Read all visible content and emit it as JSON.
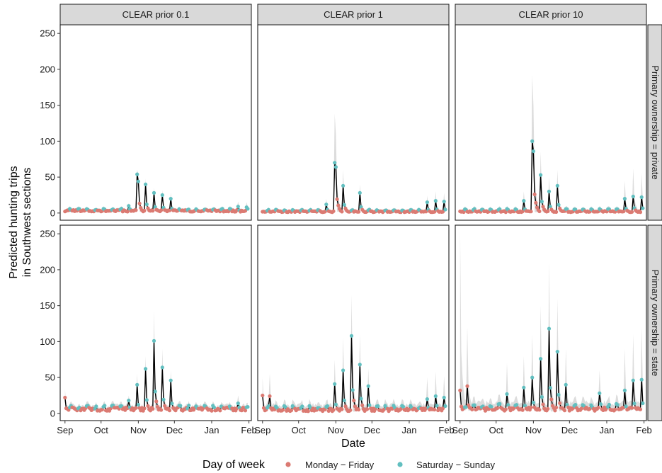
{
  "chart_data": {
    "type": "line",
    "xlabel": "Date",
    "ylabel_lines": [
      "Predicted hunting trips",
      "in Southwest sections"
    ],
    "yticks": [
      0,
      50,
      100,
      150,
      200,
      250
    ],
    "ylim": [
      -10,
      262
    ],
    "x_start_date": "2020-09-01",
    "xlim": [
      "2020-08-28",
      "2021-02-03"
    ],
    "xticks": [
      {
        "label": "Sep",
        "date": "2020-09-01"
      },
      {
        "label": "Oct",
        "date": "2020-10-01"
      },
      {
        "label": "Nov",
        "date": "2020-11-01"
      },
      {
        "label": "Dec",
        "date": "2020-12-01"
      },
      {
        "label": "Jan",
        "date": "2021-01-01"
      },
      {
        "label": "Feb",
        "date": "2021-02-01"
      }
    ],
    "col_strips": [
      "CLEAR prior 0.1",
      "CLEAR prior 1",
      "CLEAR prior 10"
    ],
    "row_strips": [
      "Primary ownership = private",
      "Primary ownership = state"
    ],
    "legend": {
      "title": "Day of week",
      "position": "bottom",
      "items": [
        {
          "label": "Monday − Friday",
          "color": "#db7a72"
        },
        {
          "label": "Saturday − Sunday",
          "color": "#62bfc0"
        }
      ]
    },
    "ribbon_color": "#bfbfbf",
    "line_color": "#000000",
    "series_note": "Daily predictions, Sep 1 2020 through Jan 31 2021; point color by weekday vs weekend",
    "panels": [
      {
        "row": 0,
        "col": 0,
        "base": 3,
        "weekend_bump": 2,
        "ci_ratio": 0.25,
        "ci_add": 2,
        "peaks": [
          {
            "date": "2020-10-31",
            "value": 54,
            "upper": 60
          },
          {
            "date": "2020-11-01",
            "value": 44,
            "upper": 55
          },
          {
            "date": "2020-11-07",
            "value": 40,
            "upper": 48
          },
          {
            "date": "2020-11-14",
            "value": 28,
            "upper": 35
          },
          {
            "date": "2020-11-21",
            "value": 25,
            "upper": 32
          },
          {
            "date": "2020-11-28",
            "value": 20,
            "upper": 28
          },
          {
            "date": "2020-10-24",
            "value": 10,
            "upper": 14
          },
          {
            "date": "2021-01-23",
            "value": 9,
            "upper": 16
          },
          {
            "date": "2021-01-30",
            "value": 8,
            "upper": 15
          }
        ]
      },
      {
        "row": 0,
        "col": 1,
        "base": 2,
        "weekend_bump": 2,
        "ci_ratio": 0.3,
        "ci_add": 2,
        "peaks": [
          {
            "date": "2020-10-31",
            "value": 70,
            "upper": 138
          },
          {
            "date": "2020-11-01",
            "value": 64,
            "upper": 110
          },
          {
            "date": "2020-11-07",
            "value": 38,
            "upper": 60
          },
          {
            "date": "2020-11-21",
            "value": 28,
            "upper": 40
          },
          {
            "date": "2020-10-24",
            "value": 12,
            "upper": 20
          },
          {
            "date": "2021-01-16",
            "value": 15,
            "upper": 24
          },
          {
            "date": "2021-01-23",
            "value": 17,
            "upper": 30
          },
          {
            "date": "2021-01-30",
            "value": 16,
            "upper": 28
          }
        ]
      },
      {
        "row": 0,
        "col": 2,
        "base": 2,
        "weekend_bump": 3,
        "ci_ratio": 0.35,
        "ci_add": 2,
        "peaks": [
          {
            "date": "2020-10-31",
            "value": 100,
            "upper": 192
          },
          {
            "date": "2020-11-01",
            "value": 86,
            "upper": 150
          },
          {
            "date": "2020-11-07",
            "value": 53,
            "upper": 85
          },
          {
            "date": "2020-11-14",
            "value": 30,
            "upper": 50
          },
          {
            "date": "2020-11-21",
            "value": 38,
            "upper": 60
          },
          {
            "date": "2020-10-24",
            "value": 17,
            "upper": 30
          },
          {
            "date": "2021-01-16",
            "value": 20,
            "upper": 45
          },
          {
            "date": "2021-01-23",
            "value": 23,
            "upper": 62
          },
          {
            "date": "2021-01-30",
            "value": 22,
            "upper": 55
          }
        ]
      },
      {
        "row": 1,
        "col": 0,
        "base": 6,
        "weekend_bump": 3,
        "ci_ratio": 0.3,
        "ci_add": 3,
        "peaks": [
          {
            "date": "2020-09-01",
            "value": 22,
            "upper": 33
          },
          {
            "date": "2020-10-31",
            "value": 40,
            "upper": 55
          },
          {
            "date": "2020-11-07",
            "value": 62,
            "upper": 80
          },
          {
            "date": "2020-11-14",
            "value": 101,
            "upper": 142
          },
          {
            "date": "2020-11-21",
            "value": 64,
            "upper": 90
          },
          {
            "date": "2020-11-28",
            "value": 46,
            "upper": 60
          },
          {
            "date": "2020-10-24",
            "value": 18,
            "upper": 25
          },
          {
            "date": "2021-01-23",
            "value": 14,
            "upper": 25
          }
        ]
      },
      {
        "row": 1,
        "col": 1,
        "base": 5,
        "weekend_bump": 4,
        "ci_ratio": 0.5,
        "ci_add": 4,
        "peaks": [
          {
            "date": "2020-09-01",
            "value": 25,
            "upper": 50
          },
          {
            "date": "2020-09-07",
            "value": 24,
            "upper": 55
          },
          {
            "date": "2020-10-31",
            "value": 41,
            "upper": 75
          },
          {
            "date": "2020-11-07",
            "value": 60,
            "upper": 105
          },
          {
            "date": "2020-11-14",
            "value": 108,
            "upper": 165
          },
          {
            "date": "2020-11-21",
            "value": 68,
            "upper": 110
          },
          {
            "date": "2020-11-28",
            "value": 38,
            "upper": 62
          },
          {
            "date": "2021-01-16",
            "value": 20,
            "upper": 50
          },
          {
            "date": "2021-01-23",
            "value": 24,
            "upper": 58
          },
          {
            "date": "2021-01-30",
            "value": 22,
            "upper": 52
          }
        ]
      },
      {
        "row": 1,
        "col": 2,
        "base": 6,
        "weekend_bump": 5,
        "ci_ratio": 0.6,
        "ci_add": 5,
        "peaks": [
          {
            "date": "2020-09-01",
            "value": 32,
            "upper": 258
          },
          {
            "date": "2020-09-07",
            "value": 38,
            "upper": 120
          },
          {
            "date": "2020-10-10",
            "value": 27,
            "upper": 70
          },
          {
            "date": "2020-10-24",
            "value": 36,
            "upper": 80
          },
          {
            "date": "2020-10-31",
            "value": 50,
            "upper": 110
          },
          {
            "date": "2020-11-07",
            "value": 76,
            "upper": 150
          },
          {
            "date": "2020-11-14",
            "value": 118,
            "upper": 210
          },
          {
            "date": "2020-11-21",
            "value": 86,
            "upper": 160
          },
          {
            "date": "2020-11-28",
            "value": 40,
            "upper": 90
          },
          {
            "date": "2020-12-26",
            "value": 28,
            "upper": 60
          },
          {
            "date": "2021-01-16",
            "value": 32,
            "upper": 90
          },
          {
            "date": "2021-01-23",
            "value": 46,
            "upper": 110
          },
          {
            "date": "2021-01-30",
            "value": 47,
            "upper": 120
          }
        ]
      }
    ]
  }
}
